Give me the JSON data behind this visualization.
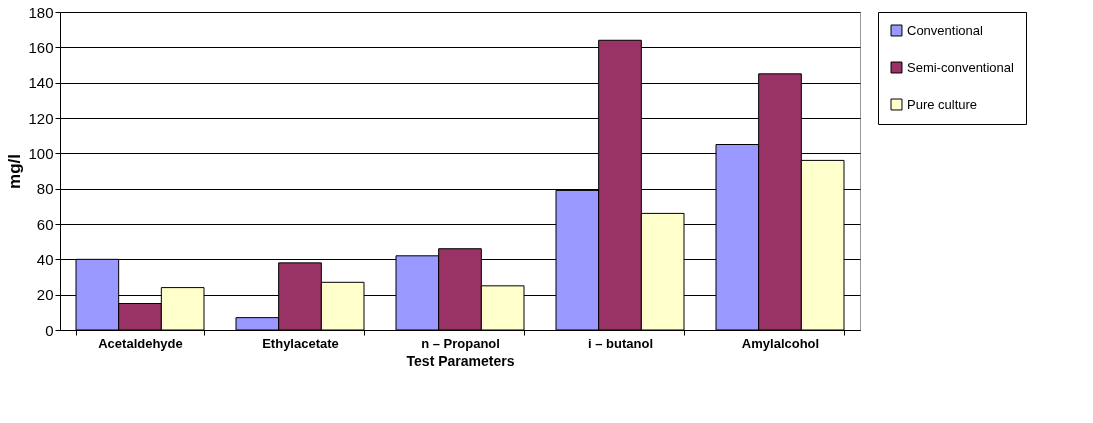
{
  "chart_data": {
    "type": "bar",
    "xlabel": "Test Parameters",
    "ylabel": "mg/l",
    "categories": [
      "Acetaldehyde",
      "Ethylacetate",
      "n – Propanol",
      "i – butanol",
      "Amylalcohol"
    ],
    "series": [
      {
        "name": "Conventional",
        "color": "#9999ff",
        "values": [
          40,
          7,
          42,
          79,
          105
        ]
      },
      {
        "name": "Semi-conventional",
        "color": "#993366",
        "values": [
          15,
          38,
          46,
          164,
          145
        ]
      },
      {
        "name": "Pure culture",
        "color": "#ffffcc",
        "values": [
          24,
          27,
          25,
          66,
          96
        ]
      }
    ],
    "ylim": [
      0,
      180
    ],
    "yticks": [
      0,
      20,
      40,
      60,
      80,
      100,
      120,
      140,
      160,
      180
    ],
    "grid": "y",
    "legend": "right"
  }
}
